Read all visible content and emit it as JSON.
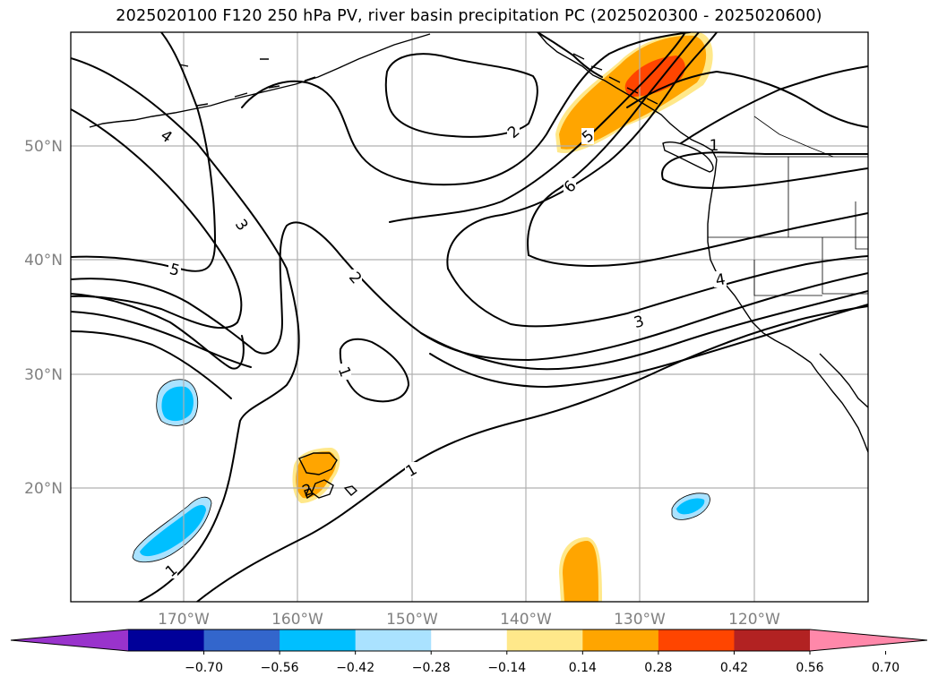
{
  "title": "2025020100 F120 250 hPa PV, river basin precipitation PC (2025020300 - 2025020600)",
  "map": {
    "lat_labels": [
      "50°N",
      "40°N",
      "30°N",
      "20°N"
    ],
    "lon_labels": [
      "170°W",
      "160°W",
      "150°W",
      "140°W",
      "130°W",
      "120°W"
    ],
    "contour_labels": [
      "4",
      "3",
      "5",
      "2",
      "2",
      "1",
      "1",
      "1",
      "2",
      "5",
      "6",
      "3",
      "4",
      "1"
    ]
  },
  "colorbar": {
    "colors": [
      "#9933cc",
      "#000099",
      "#3366cc",
      "#00bfff",
      "#aae2ff",
      "#ffffff",
      "#ffe88a",
      "#ffa500",
      "#ff4500",
      "#b22222",
      "#ff88aa"
    ],
    "ticks": [
      "−0.70",
      "−0.56",
      "−0.42",
      "−0.28",
      "−0.14",
      "0.14",
      "0.28",
      "0.42",
      "0.56",
      "0.70"
    ]
  }
}
